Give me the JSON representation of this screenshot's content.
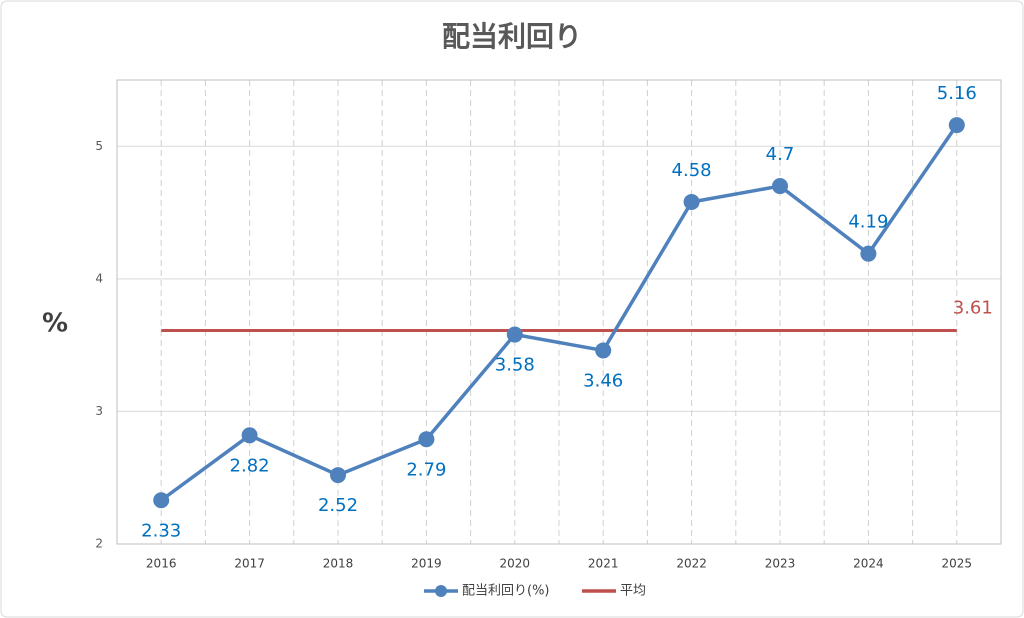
{
  "chart_data": {
    "type": "line",
    "title": "配当利回り",
    "y_label": "%",
    "categories": [
      "2016",
      "2017",
      "2018",
      "2019",
      "2020",
      "2021",
      "2022",
      "2023",
      "2024",
      "2025"
    ],
    "series": [
      {
        "name": "配当利回り(%)",
        "color": "#4f81bd",
        "label_color": "#0070c0",
        "values": [
          2.33,
          2.82,
          2.52,
          2.79,
          3.58,
          3.46,
          4.58,
          4.7,
          4.19,
          5.16
        ]
      }
    ],
    "average_line": {
      "name": "平均",
      "value": 3.61,
      "color": "#c0504d"
    },
    "ylim": [
      2,
      5.5
    ],
    "yticks": [
      2,
      3,
      4,
      5
    ],
    "grid": true
  }
}
